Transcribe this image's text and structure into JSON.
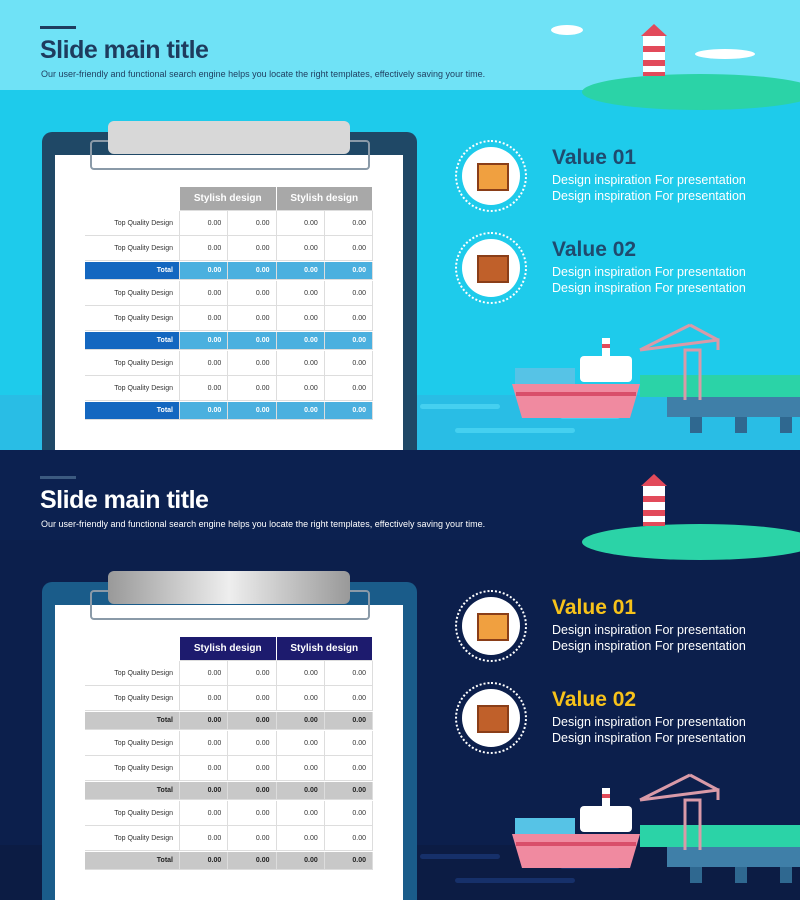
{
  "slides": [
    {
      "title": "Slide main title",
      "subtitle": "Our user-friendly and functional search engine helps you locate the right templates, effectively saving your time.",
      "table": {
        "header": [
          "Stylish design",
          "Stylish design"
        ],
        "rows": [
          {
            "label": "Top Quality Design",
            "cells": [
              "0.00",
              "0.00",
              "0.00",
              "0.00"
            ]
          },
          {
            "label": "Top Quality Design",
            "cells": [
              "0.00",
              "0.00",
              "0.00",
              "0.00"
            ]
          },
          {
            "label": "Total",
            "cells": [
              "0.00",
              "0.00",
              "0.00",
              "0.00"
            ]
          },
          {
            "label": "Top Quality Design",
            "cells": [
              "0.00",
              "0.00",
              "0.00",
              "0.00"
            ]
          },
          {
            "label": "Top Quality Design",
            "cells": [
              "0.00",
              "0.00",
              "0.00",
              "0.00"
            ]
          },
          {
            "label": "Total",
            "cells": [
              "0.00",
              "0.00",
              "0.00",
              "0.00"
            ]
          },
          {
            "label": "Top Quality Design",
            "cells": [
              "0.00",
              "0.00",
              "0.00",
              "0.00"
            ]
          },
          {
            "label": "Top Quality Design",
            "cells": [
              "0.00",
              "0.00",
              "0.00",
              "0.00"
            ]
          },
          {
            "label": "Total",
            "cells": [
              "0.00",
              "0.00",
              "0.00",
              "0.00"
            ]
          }
        ]
      },
      "values": [
        {
          "title": "Value 01",
          "lines": [
            "Design inspiration For presentation",
            "Design inspiration For presentation"
          ]
        },
        {
          "title": "Value 02",
          "lines": [
            "Design inspiration For presentation",
            "Design inspiration For presentation"
          ]
        }
      ]
    },
    {
      "title": "Slide main title",
      "subtitle": "Our user-friendly and functional search engine helps you locate the right templates, effectively saving your time.",
      "table": {
        "header": [
          "Stylish design",
          "Stylish design"
        ],
        "rows": [
          {
            "label": "Top Quality Design",
            "cells": [
              "0.00",
              "0.00",
              "0.00",
              "0.00"
            ]
          },
          {
            "label": "Top Quality Design",
            "cells": [
              "0.00",
              "0.00",
              "0.00",
              "0.00"
            ]
          },
          {
            "label": "Total",
            "cells": [
              "0.00",
              "0.00",
              "0.00",
              "0.00"
            ]
          },
          {
            "label": "Top Quality Design",
            "cells": [
              "0.00",
              "0.00",
              "0.00",
              "0.00"
            ]
          },
          {
            "label": "Top Quality Design",
            "cells": [
              "0.00",
              "0.00",
              "0.00",
              "0.00"
            ]
          },
          {
            "label": "Total",
            "cells": [
              "0.00",
              "0.00",
              "0.00",
              "0.00"
            ]
          },
          {
            "label": "Top Quality Design",
            "cells": [
              "0.00",
              "0.00",
              "0.00",
              "0.00"
            ]
          },
          {
            "label": "Top Quality Design",
            "cells": [
              "0.00",
              "0.00",
              "0.00",
              "0.00"
            ]
          },
          {
            "label": "Total",
            "cells": [
              "0.00",
              "0.00",
              "0.00",
              "0.00"
            ]
          }
        ]
      },
      "values": [
        {
          "title": "Value 01",
          "lines": [
            "Design inspiration For presentation",
            "Design inspiration For presentation"
          ]
        },
        {
          "title": "Value 02",
          "lines": [
            "Design inspiration For presentation",
            "Design inspiration For presentation"
          ]
        }
      ]
    }
  ]
}
